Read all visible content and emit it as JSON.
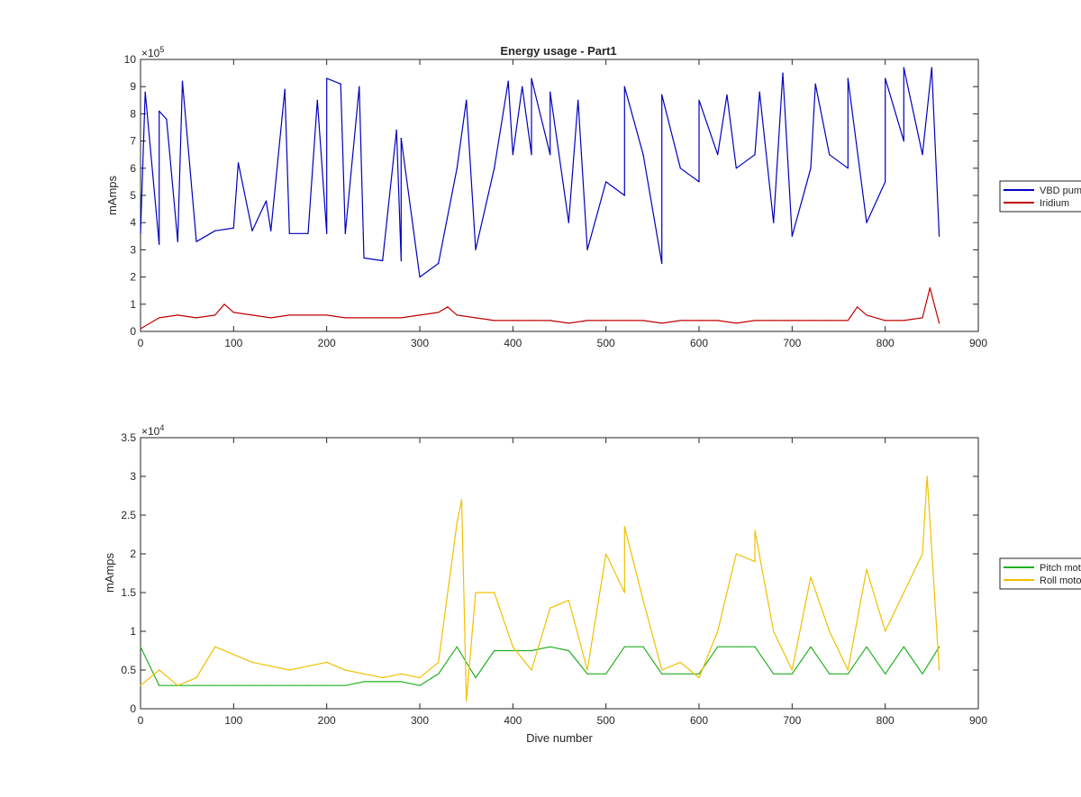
{
  "figure": {
    "title": "Energy usage - Part1"
  },
  "chart_data": [
    {
      "type": "line",
      "title": "Energy usage - Part1",
      "xlabel": "",
      "ylabel": "mAmps",
      "xlim": [
        0,
        900
      ],
      "ylim": [
        0,
        10
      ],
      "y_exponent_label": "×10",
      "y_exponent_power": "5",
      "xticks": [
        "0",
        "100",
        "200",
        "300",
        "400",
        "500",
        "600",
        "700",
        "800",
        "900"
      ],
      "yticks": [
        "0",
        "1",
        "2",
        "3",
        "4",
        "5",
        "6",
        "7",
        "8",
        "9",
        "10"
      ],
      "grid": false,
      "legend_position": "right",
      "x": [
        0,
        20,
        40,
        60,
        80,
        100,
        120,
        140,
        160,
        180,
        200,
        220,
        240,
        260,
        280,
        300,
        320,
        340,
        360,
        380,
        400,
        420,
        440,
        460,
        480,
        500,
        520,
        540,
        560,
        580,
        600,
        620,
        640,
        660,
        680,
        700,
        720,
        740,
        760,
        780,
        800,
        820,
        840,
        858
      ],
      "series": [
        {
          "name": "VBD pump",
          "color": "#0000c0",
          "values": [
            3.6,
            3.2,
            3.3,
            3.3,
            3.7,
            3.8,
            3.7,
            3.7,
            3.6,
            3.6,
            3.6,
            3.6,
            2.7,
            2.6,
            2.6,
            2.0,
            2.5,
            6.0,
            3.0,
            6.0,
            6.5,
            6.5,
            6.5,
            4.0,
            3.0,
            5.5,
            5.0,
            6.5,
            2.5,
            6.0,
            5.5,
            6.5,
            6.0,
            6.5,
            4.0,
            3.5,
            6.0,
            6.5,
            6.0,
            4.0,
            5.5,
            7.0,
            6.5,
            3.5
          ],
          "spikes": [
            [
              5,
              8.8
            ],
            [
              20,
              8.1
            ],
            [
              28,
              7.8
            ],
            [
              45,
              9.2
            ],
            [
              105,
              6.2
            ],
            [
              135,
              4.8
            ],
            [
              155,
              8.9
            ],
            [
              190,
              8.5
            ],
            [
              200,
              9.3
            ],
            [
              215,
              9.1
            ],
            [
              235,
              9.0
            ],
            [
              275,
              7.4
            ],
            [
              280,
              7.1
            ],
            [
              350,
              8.5
            ],
            [
              395,
              9.2
            ],
            [
              410,
              9.0
            ],
            [
              420,
              9.3
            ],
            [
              440,
              8.8
            ],
            [
              470,
              8.5
            ],
            [
              520,
              9.0
            ],
            [
              560,
              8.7
            ],
            [
              600,
              8.5
            ],
            [
              630,
              8.7
            ],
            [
              665,
              8.8
            ],
            [
              690,
              9.5
            ],
            [
              725,
              9.1
            ],
            [
              760,
              9.3
            ],
            [
              800,
              9.3
            ],
            [
              820,
              9.7
            ],
            [
              850,
              9.7
            ]
          ]
        },
        {
          "name": "Iridium",
          "color": "#c00000",
          "values": [
            0.1,
            0.5,
            0.6,
            0.5,
            0.6,
            0.7,
            0.6,
            0.5,
            0.6,
            0.6,
            0.6,
            0.5,
            0.5,
            0.5,
            0.5,
            0.6,
            0.7,
            0.6,
            0.5,
            0.4,
            0.4,
            0.4,
            0.4,
            0.3,
            0.4,
            0.4,
            0.4,
            0.4,
            0.3,
            0.4,
            0.4,
            0.4,
            0.3,
            0.4,
            0.4,
            0.4,
            0.4,
            0.4,
            0.4,
            0.6,
            0.4,
            0.4,
            0.5,
            0.3
          ],
          "spikes": [
            [
              90,
              1.0
            ],
            [
              330,
              0.9
            ],
            [
              770,
              0.9
            ],
            [
              848,
              1.6
            ]
          ]
        }
      ]
    },
    {
      "type": "line",
      "title": "",
      "xlabel": "Dive number",
      "ylabel": "mAmps",
      "xlim": [
        0,
        900
      ],
      "ylim": [
        0,
        3.5
      ],
      "y_exponent_label": "×10",
      "y_exponent_power": "4",
      "xticks": [
        "0",
        "100",
        "200",
        "300",
        "400",
        "500",
        "600",
        "700",
        "800",
        "900"
      ],
      "yticks": [
        "0",
        "0.5",
        "1",
        "1.5",
        "2",
        "2.5",
        "3",
        "3.5"
      ],
      "grid": false,
      "legend_position": "right",
      "x": [
        0,
        20,
        40,
        60,
        80,
        100,
        120,
        140,
        160,
        180,
        200,
        220,
        240,
        260,
        280,
        300,
        320,
        340,
        360,
        380,
        400,
        420,
        440,
        460,
        480,
        500,
        520,
        540,
        560,
        580,
        600,
        620,
        640,
        660,
        680,
        700,
        720,
        740,
        760,
        780,
        800,
        820,
        840,
        858
      ],
      "series": [
        {
          "name": "Pitch motor",
          "color": "#20b020",
          "values": [
            0.8,
            0.3,
            0.3,
            0.3,
            0.3,
            0.3,
            0.3,
            0.3,
            0.3,
            0.3,
            0.3,
            0.3,
            0.35,
            0.35,
            0.35,
            0.3,
            0.45,
            0.8,
            0.4,
            0.75,
            0.75,
            0.75,
            0.8,
            0.75,
            0.45,
            0.45,
            0.8,
            0.8,
            0.45,
            0.45,
            0.45,
            0.8,
            0.8,
            0.8,
            0.45,
            0.45,
            0.8,
            0.45,
            0.45,
            0.8,
            0.45,
            0.8,
            0.45,
            0.8
          ],
          "spikes": []
        },
        {
          "name": "Roll motor",
          "color": "#f0c000",
          "values": [
            0.3,
            0.5,
            0.3,
            0.4,
            0.8,
            0.7,
            0.6,
            0.55,
            0.5,
            0.55,
            0.6,
            0.5,
            0.45,
            0.4,
            0.45,
            0.4,
            0.6,
            2.4,
            1.5,
            1.5,
            0.8,
            0.5,
            1.3,
            1.4,
            0.5,
            2.0,
            1.5,
            1.4,
            0.5,
            0.6,
            0.4,
            1.0,
            2.0,
            1.9,
            1.0,
            0.5,
            1.7,
            1.0,
            0.5,
            1.8,
            1.0,
            1.5,
            2.0,
            0.5
          ],
          "spikes": [
            [
              345,
              2.7
            ],
            [
              350,
              0.1
            ],
            [
              520,
              2.35
            ],
            [
              660,
              2.3
            ],
            [
              845,
              3.0
            ]
          ]
        }
      ]
    }
  ]
}
